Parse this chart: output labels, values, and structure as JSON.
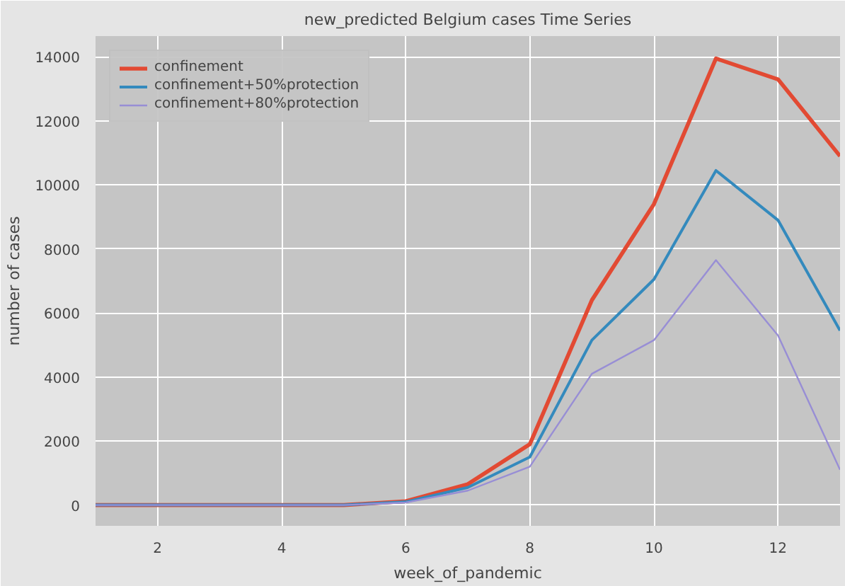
{
  "chart_data": {
    "type": "line",
    "title": "new_predicted Belgium cases Time Series",
    "xlabel": "week_of_pandemic",
    "ylabel": "number of cases",
    "x": [
      1,
      2,
      3,
      4,
      5,
      6,
      7,
      8,
      9,
      10,
      11,
      12,
      13
    ],
    "series": [
      {
        "name": "confinement",
        "color": "#e24a33",
        "values": [
          0,
          0,
          0,
          0,
          0,
          120,
          650,
          1900,
          6400,
          9400,
          13950,
          13300,
          10900
        ]
      },
      {
        "name": "confinement+50%protection",
        "color": "#348abd",
        "values": [
          0,
          0,
          0,
          0,
          0,
          100,
          550,
          1500,
          5150,
          7050,
          10450,
          8900,
          5450
        ]
      },
      {
        "name": "confinement+80%protection",
        "color": "#988ed5",
        "values": [
          0,
          0,
          0,
          0,
          0,
          80,
          450,
          1200,
          4100,
          5150,
          7650,
          5300,
          1100
        ]
      }
    ],
    "xlim": [
      1,
      13
    ],
    "ylim": [
      -650,
      14650
    ],
    "xticks": [
      2,
      4,
      6,
      8,
      10,
      12
    ],
    "yticks": [
      0,
      2000,
      4000,
      6000,
      8000,
      10000,
      12000,
      14000
    ],
    "grid": true,
    "legend": "top left",
    "line_style": "solid",
    "marker": "none"
  }
}
